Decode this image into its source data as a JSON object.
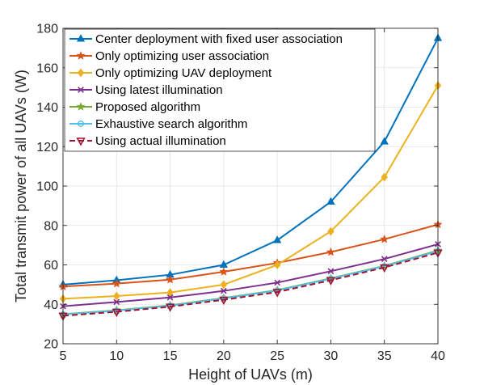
{
  "chart_data": {
    "type": "line",
    "title": "",
    "xlabel": "Height of UAVs (m)",
    "ylabel": "Total transmit power of all UAVs (W)",
    "xlim": [
      5,
      40
    ],
    "ylim": [
      20,
      180
    ],
    "xticks": [
      5,
      10,
      15,
      20,
      25,
      30,
      35,
      40
    ],
    "yticks": [
      20,
      40,
      60,
      80,
      100,
      120,
      140,
      160,
      180
    ],
    "grid": true,
    "legend_position": "top-left",
    "x": [
      5,
      10,
      15,
      20,
      25,
      30,
      35,
      40
    ],
    "series": [
      {
        "name": "Center deployment with fixed user association",
        "color": "#0072BD",
        "marker": "triangle-up",
        "dash": "solid",
        "values": [
          50.0,
          52.2,
          55.0,
          60.0,
          72.5,
          92.0,
          122.5,
          175.0
        ]
      },
      {
        "name": "Only optimizing user association",
        "color": "#D95319",
        "marker": "star",
        "dash": "solid",
        "values": [
          49.0,
          50.5,
          52.5,
          56.5,
          61.0,
          66.5,
          73.0,
          80.5
        ]
      },
      {
        "name": "Only optimizing UAV deployment",
        "color": "#EDB120",
        "marker": "diamond",
        "dash": "solid",
        "values": [
          42.8,
          44.2,
          46.0,
          50.0,
          60.0,
          77.0,
          104.5,
          151.0
        ]
      },
      {
        "name": "Using latest illumination",
        "color": "#7E2F8E",
        "marker": "x",
        "dash": "solid",
        "values": [
          39.0,
          41.2,
          43.5,
          46.8,
          51.0,
          56.8,
          63.0,
          70.5
        ]
      },
      {
        "name": "Proposed algorithm",
        "color": "#77AC30",
        "marker": "star",
        "dash": "solid",
        "values": [
          35.0,
          37.0,
          39.5,
          43.2,
          47.2,
          53.2,
          59.5,
          67.3
        ]
      },
      {
        "name": "Exhaustive search algorithm",
        "color": "#4DBEEE",
        "marker": "circle",
        "dash": "solid",
        "values": [
          34.8,
          36.8,
          39.3,
          43.0,
          47.0,
          53.0,
          59.3,
          67.0
        ]
      },
      {
        "name": "Using actual illumination",
        "color": "#A2142F",
        "marker": "triangle-down",
        "dash": "dashed",
        "values": [
          34.2,
          36.2,
          38.8,
          42.3,
          46.2,
          52.2,
          58.7,
          66.2
        ]
      }
    ]
  }
}
